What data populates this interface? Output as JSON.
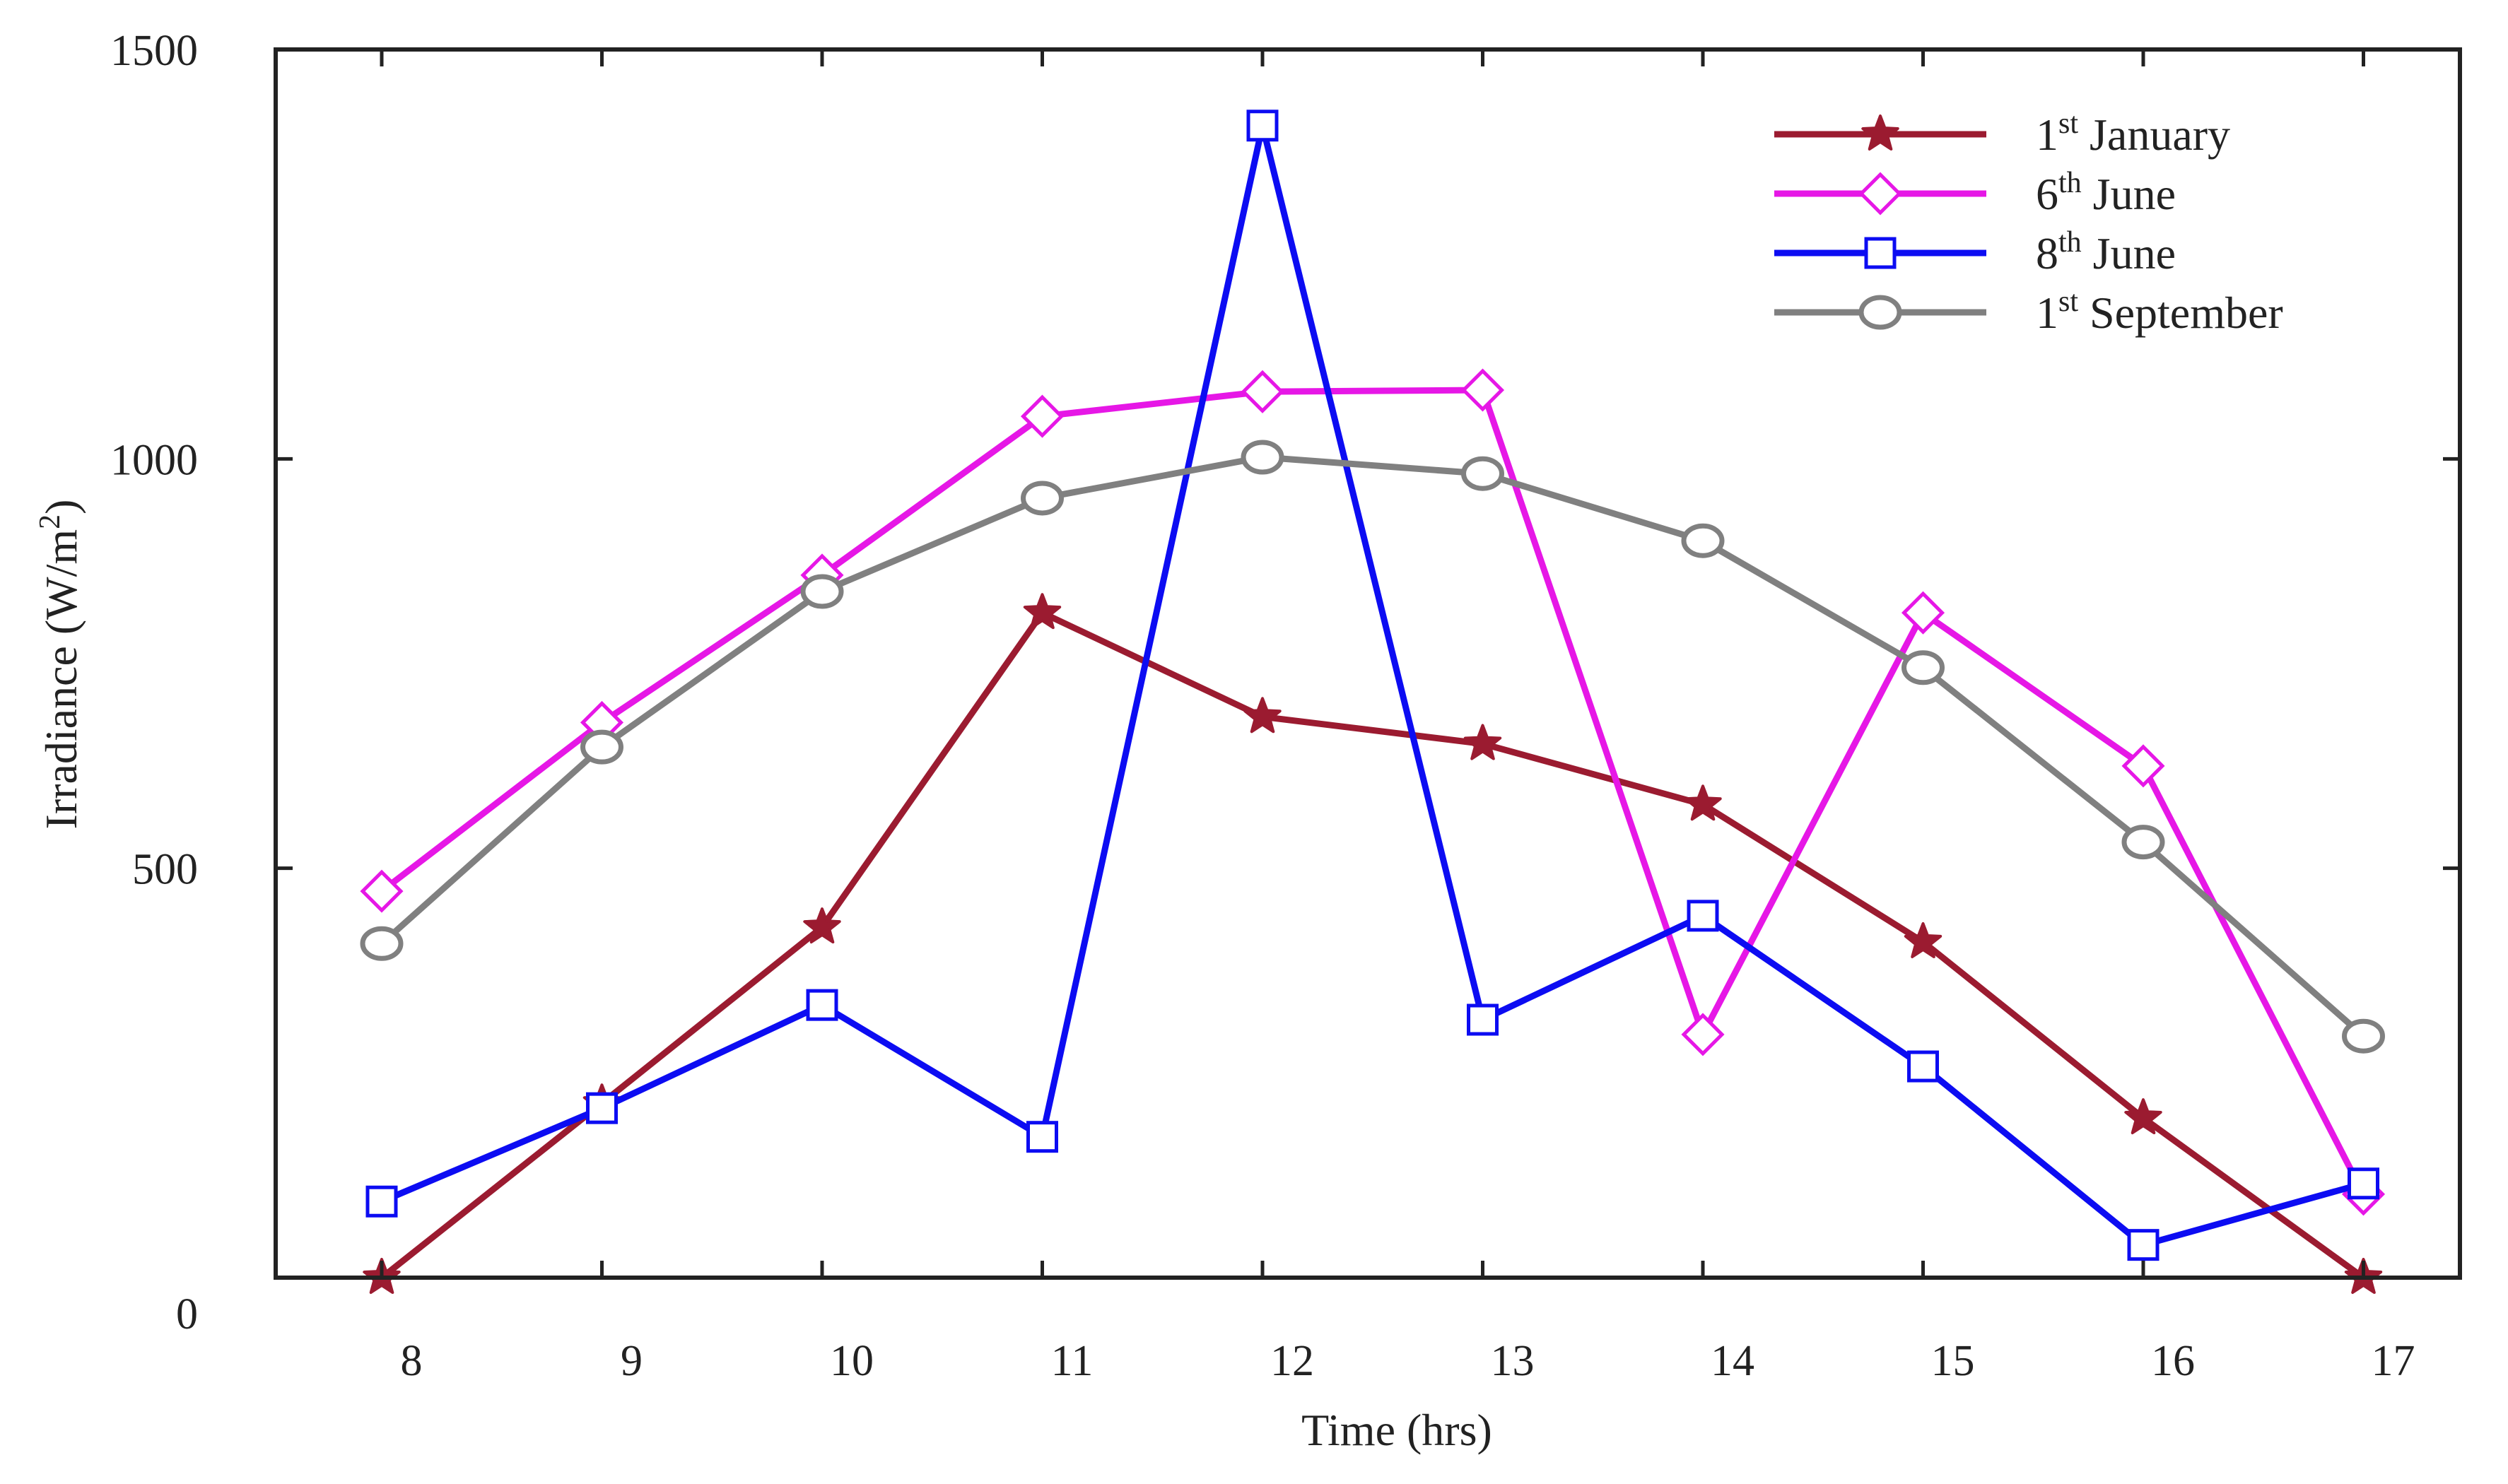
{
  "chart_data": {
    "type": "line",
    "title": "",
    "xlabel": "Time (hrs)",
    "ylabel": {
      "text": "Irradiance (W/m",
      "sup": "2",
      "suffix": ")"
    },
    "xlim": [
      7.5,
      17.5
    ],
    "ylim": [
      0,
      1500
    ],
    "x": [
      8,
      9,
      10,
      11,
      12,
      13,
      14,
      15,
      16,
      17
    ],
    "x_ticks": [
      "8",
      "9",
      "10",
      "11",
      "12",
      "13",
      "14",
      "15",
      "16",
      "17"
    ],
    "y_ticks": [
      "0",
      "500",
      "1000",
      "1500"
    ],
    "grid": false,
    "legend_position": "top-right",
    "series": [
      {
        "name": "1st January",
        "label_num": "1",
        "label_sup": "st",
        "label_rest": " January",
        "marker": "star",
        "color": "#9b1b30",
        "values": [
          0,
          213,
          428,
          812,
          685,
          652,
          578,
          410,
          195,
          0
        ]
      },
      {
        "name": "6th June",
        "label_num": "6",
        "label_sup": "th",
        "label_rest": " June",
        "marker": "diamond",
        "color": "#e617e6",
        "values": [
          472,
          678,
          858,
          1052,
          1082,
          1084,
          297,
          812,
          625,
          102
        ]
      },
      {
        "name": "8th June",
        "label_num": "8",
        "label_sup": "th",
        "label_rest": " June",
        "marker": "square",
        "color": "#0c0cf2",
        "values": [
          93,
          207,
          333,
          172,
          1407,
          315,
          442,
          258,
          40,
          115
        ]
      },
      {
        "name": "1st September",
        "label_num": "1",
        "label_sup": "st",
        "label_rest": " September",
        "marker": "circle",
        "color": "#808080",
        "values": [
          408,
          648,
          838,
          952,
          1002,
          982,
          900,
          745,
          532,
          295
        ]
      }
    ]
  }
}
